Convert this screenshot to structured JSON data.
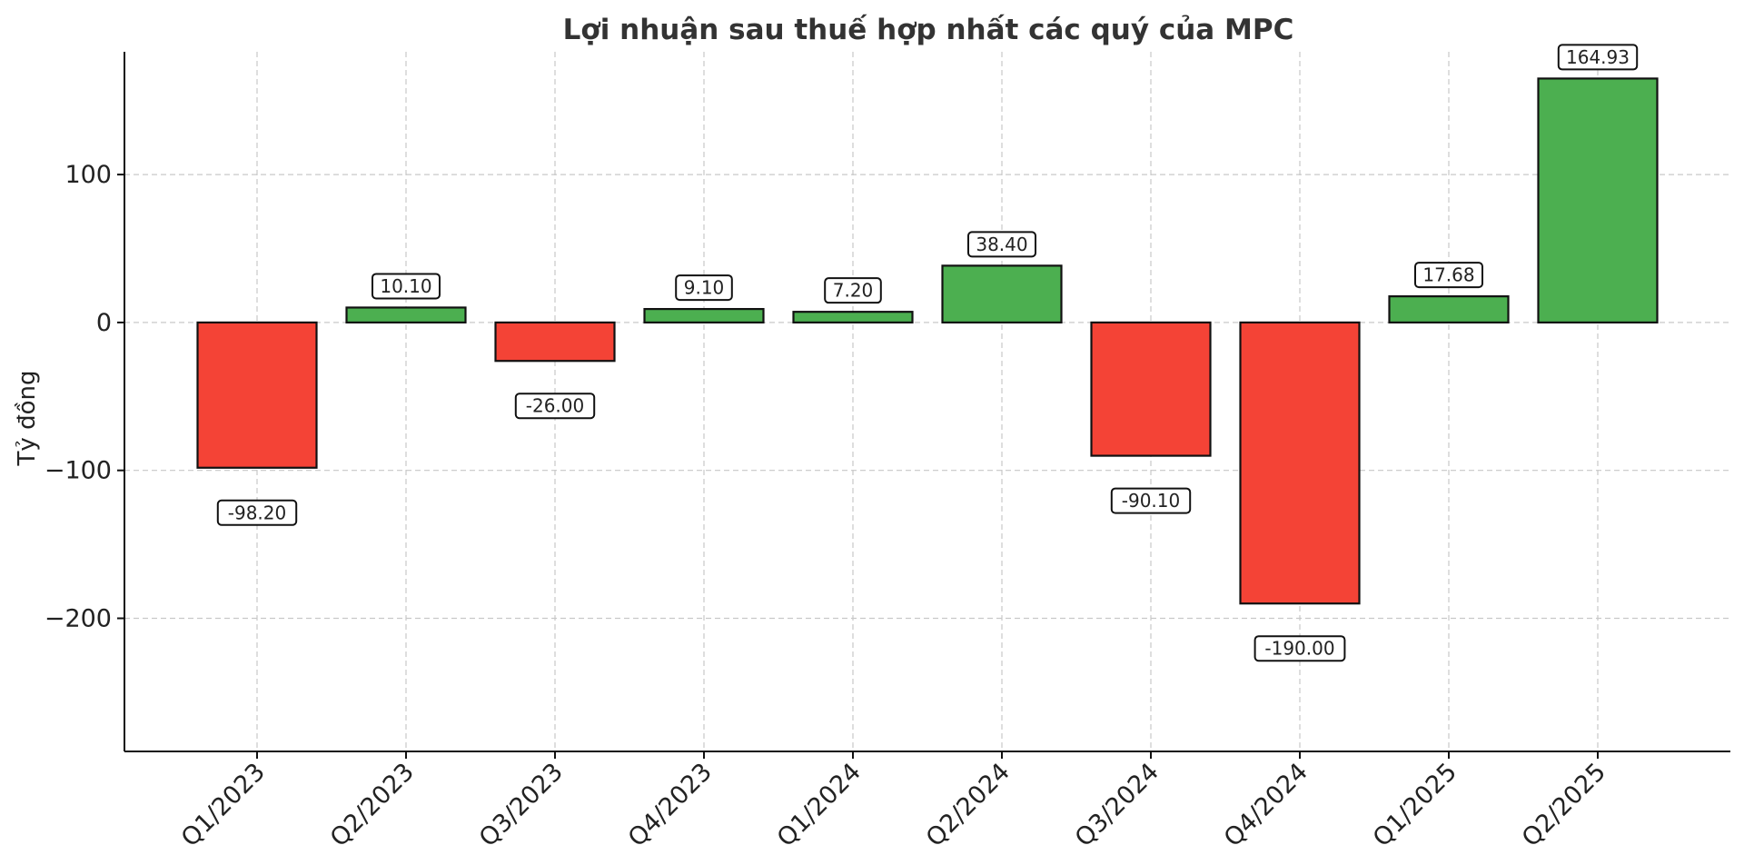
{
  "chart_data": {
    "type": "bar",
    "title": "Lợi nhuận sau thuế hợp nhất các quý của MPC",
    "ylabel": "Tỷ đồng",
    "xlabel": "",
    "categories": [
      "Q1/2023",
      "Q2/2023",
      "Q3/2023",
      "Q4/2023",
      "Q1/2024",
      "Q2/2024",
      "Q3/2024",
      "Q4/2024",
      "Q1/2025",
      "Q2/2025"
    ],
    "values": [
      -98.2,
      10.1,
      -26.0,
      9.1,
      7.2,
      38.4,
      -90.1,
      -190.0,
      17.68,
      164.93
    ],
    "data_labels": [
      "-98.20",
      "10.10",
      "-26.00",
      "9.10",
      "7.20",
      "38.40",
      "-90.10",
      "-190.00",
      "17.68",
      "164.93"
    ],
    "ylim": [
      -290,
      183
    ],
    "yticks": [
      100,
      0,
      -100,
      -200
    ],
    "ytick_labels": [
      "100",
      "0",
      "−100",
      "−200"
    ],
    "grid": true,
    "colors": {
      "positive": "#4caf50",
      "negative": "#f44336"
    }
  }
}
